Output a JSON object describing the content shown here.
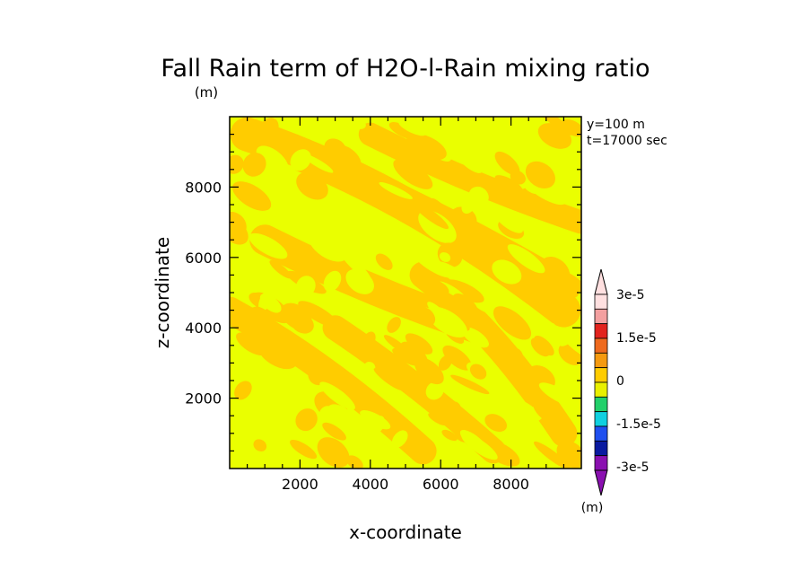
{
  "chart_data": {
    "type": "heatmap",
    "title": "Fall Rain term of H2O-l-Rain mixing ratio",
    "title_unit": "(m)",
    "xlabel": "x-coordinate",
    "ylabel": "z-coordinate",
    "xlim": [
      0,
      10000
    ],
    "ylim": [
      0,
      10000
    ],
    "x_ticks": [
      "2000",
      "4000",
      "6000",
      "8000"
    ],
    "y_ticks": [
      "2000",
      "4000",
      "6000",
      "8000"
    ],
    "annotation_y": "y=100 m",
    "annotation_t": "t=17000 sec",
    "colorbar": {
      "unit": "(m)",
      "labels": [
        "3e-5",
        "1.5e-5",
        "0",
        "-1.5e-5",
        "-3e-5"
      ],
      "levels_top_to_bottom": [
        "#ffe0e0",
        "#f3a0a0",
        "#e2231e",
        "#ef6a1e",
        "#f59a10",
        "#ffcc00",
        "#e9f000",
        "#22d06a",
        "#10d0e0",
        "#2050f0",
        "#0a1aa0",
        "#8a10b0"
      ]
    },
    "field_colors": {
      "low": "#eaff00",
      "high": "#ffcc00"
    }
  }
}
